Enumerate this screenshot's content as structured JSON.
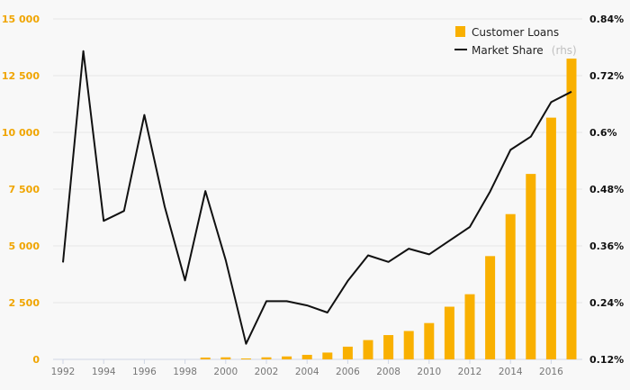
{
  "chart_data": {
    "type": "bar",
    "title": "",
    "xlabel": "",
    "ylabel": "",
    "ylim": [
      0,
      15000
    ],
    "y2lim": [
      0.12,
      0.84
    ],
    "grid": true,
    "legend_placement": "top-right",
    "x": [
      1992,
      1993,
      1994,
      1995,
      1996,
      1997,
      1998,
      1999,
      2000,
      2001,
      2002,
      2003,
      2004,
      2005,
      2006,
      2007,
      2008,
      2009,
      2010,
      2011,
      2012,
      2013,
      2014,
      2015,
      2016,
      2017
    ],
    "x_tick_labels": [
      "1992",
      "1994",
      "1996",
      "1998",
      "2000",
      "2002",
      "2004",
      "2006",
      "2008",
      "2010",
      "2012",
      "2014",
      "2016"
    ],
    "y_tick_labels": [
      "0",
      "2 500",
      "5 000",
      "7 500",
      "10 000",
      "12 500",
      "15 000"
    ],
    "y2_tick_labels": [
      "0.12%",
      "0.24%",
      "0.36%",
      "0.48%",
      "0.6%",
      "0.72%",
      "0.84%"
    ],
    "series": [
      {
        "name": "Customer Loans",
        "type": "bar",
        "axis": "left",
        "color": "#f9b000",
        "values": [
          0,
          0,
          0,
          0,
          0,
          0,
          0,
          80,
          90,
          40,
          90,
          130,
          200,
          300,
          560,
          850,
          1070,
          1250,
          1600,
          2320,
          2870,
          4550,
          6400,
          8170,
          10650,
          13250
        ]
      },
      {
        "name": "Market Share",
        "name_suffix": "(rhs)",
        "type": "line",
        "axis": "right",
        "color": "#111111",
        "values": [
          0.325,
          0.772,
          0.413,
          0.434,
          0.637,
          0.443,
          0.287,
          0.476,
          0.33,
          0.153,
          0.243,
          0.243,
          0.234,
          0.219,
          0.286,
          0.34,
          0.326,
          0.354,
          0.342,
          0.371,
          0.4,
          0.475,
          0.563,
          0.591,
          0.664,
          0.686
        ]
      }
    ]
  }
}
